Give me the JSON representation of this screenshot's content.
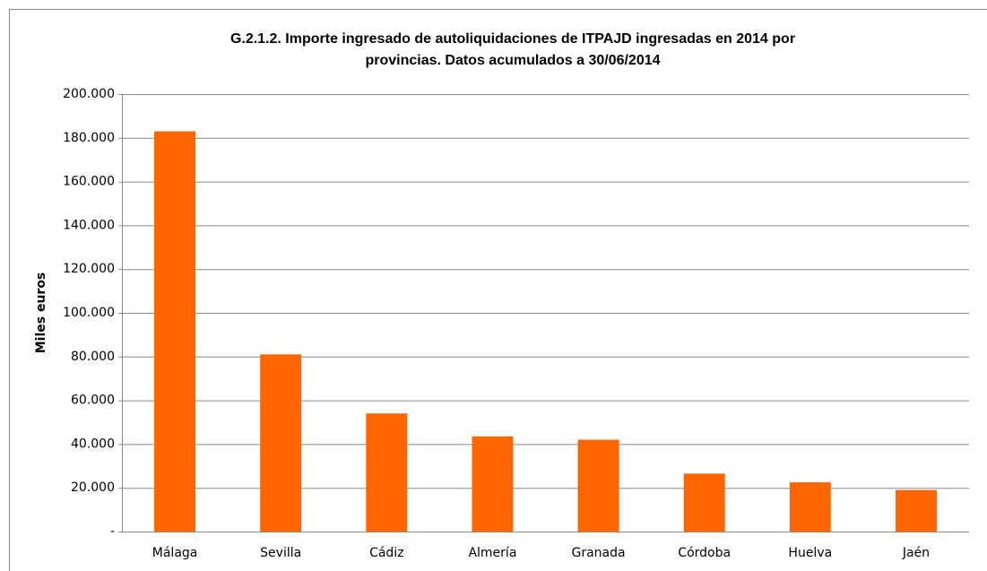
{
  "chart_data": {
    "type": "bar",
    "title": [
      "G.2.1.2. Importe ingresado de autoliquidaciones de ITPAJD ingresadas en 2014 por",
      "provincias. Datos acumulados a 30/06/2014"
    ],
    "y_label": "Miles euros",
    "categories": [
      "Málaga",
      "Sevilla",
      "Cádiz",
      "Almería",
      "Granada",
      "Córdoba",
      "Huelva",
      "Jaén"
    ],
    "values": [
      183000,
      81000,
      54000,
      43500,
      42000,
      26500,
      22500,
      19000
    ],
    "color": "#ff6600",
    "ylim": [
      0,
      200000
    ],
    "yticks": [
      {
        "value": 0,
        "label": "-"
      },
      {
        "value": 20000,
        "label": "20.000"
      },
      {
        "value": 40000,
        "label": "40.000"
      },
      {
        "value": 60000,
        "label": "60.000"
      },
      {
        "value": 80000,
        "label": "80.000"
      },
      {
        "value": 100000,
        "label": "100.000"
      },
      {
        "value": 120000,
        "label": "120.000"
      },
      {
        "value": 140000,
        "label": "140.000"
      },
      {
        "value": 160000,
        "label": "160.000"
      },
      {
        "value": 180000,
        "label": "180.000"
      },
      {
        "value": 200000,
        "label": "200.000"
      }
    ],
    "grid": true
  }
}
